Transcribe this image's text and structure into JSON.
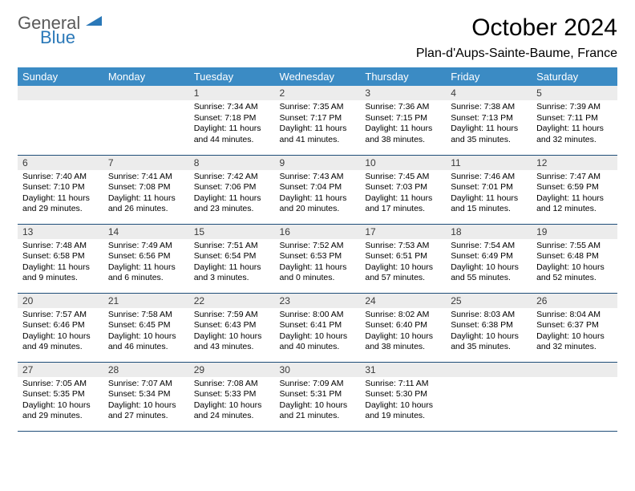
{
  "logo": {
    "part1": "General",
    "part2": "Blue"
  },
  "title": "October 2024",
  "location": "Plan-d'Aups-Sainte-Baume, France",
  "colors": {
    "header_bg": "#3b8bc4",
    "header_text": "#ffffff",
    "daynum_bg": "#ececec",
    "border": "#1f4e79",
    "logo_gray": "#5a5a5a",
    "logo_blue": "#2a78b8"
  },
  "layout": {
    "columns": 7,
    "rows": 5,
    "first_weekday_index": 2
  },
  "weekdays": [
    "Sunday",
    "Monday",
    "Tuesday",
    "Wednesday",
    "Thursday",
    "Friday",
    "Saturday"
  ],
  "days": [
    {
      "n": 1,
      "sunrise": "7:34 AM",
      "sunset": "7:18 PM",
      "daylight": "11 hours and 44 minutes."
    },
    {
      "n": 2,
      "sunrise": "7:35 AM",
      "sunset": "7:17 PM",
      "daylight": "11 hours and 41 minutes."
    },
    {
      "n": 3,
      "sunrise": "7:36 AM",
      "sunset": "7:15 PM",
      "daylight": "11 hours and 38 minutes."
    },
    {
      "n": 4,
      "sunrise": "7:38 AM",
      "sunset": "7:13 PM",
      "daylight": "11 hours and 35 minutes."
    },
    {
      "n": 5,
      "sunrise": "7:39 AM",
      "sunset": "7:11 PM",
      "daylight": "11 hours and 32 minutes."
    },
    {
      "n": 6,
      "sunrise": "7:40 AM",
      "sunset": "7:10 PM",
      "daylight": "11 hours and 29 minutes."
    },
    {
      "n": 7,
      "sunrise": "7:41 AM",
      "sunset": "7:08 PM",
      "daylight": "11 hours and 26 minutes."
    },
    {
      "n": 8,
      "sunrise": "7:42 AM",
      "sunset": "7:06 PM",
      "daylight": "11 hours and 23 minutes."
    },
    {
      "n": 9,
      "sunrise": "7:43 AM",
      "sunset": "7:04 PM",
      "daylight": "11 hours and 20 minutes."
    },
    {
      "n": 10,
      "sunrise": "7:45 AM",
      "sunset": "7:03 PM",
      "daylight": "11 hours and 17 minutes."
    },
    {
      "n": 11,
      "sunrise": "7:46 AM",
      "sunset": "7:01 PM",
      "daylight": "11 hours and 15 minutes."
    },
    {
      "n": 12,
      "sunrise": "7:47 AM",
      "sunset": "6:59 PM",
      "daylight": "11 hours and 12 minutes."
    },
    {
      "n": 13,
      "sunrise": "7:48 AM",
      "sunset": "6:58 PM",
      "daylight": "11 hours and 9 minutes."
    },
    {
      "n": 14,
      "sunrise": "7:49 AM",
      "sunset": "6:56 PM",
      "daylight": "11 hours and 6 minutes."
    },
    {
      "n": 15,
      "sunrise": "7:51 AM",
      "sunset": "6:54 PM",
      "daylight": "11 hours and 3 minutes."
    },
    {
      "n": 16,
      "sunrise": "7:52 AM",
      "sunset": "6:53 PM",
      "daylight": "11 hours and 0 minutes."
    },
    {
      "n": 17,
      "sunrise": "7:53 AM",
      "sunset": "6:51 PM",
      "daylight": "10 hours and 57 minutes."
    },
    {
      "n": 18,
      "sunrise": "7:54 AM",
      "sunset": "6:49 PM",
      "daylight": "10 hours and 55 minutes."
    },
    {
      "n": 19,
      "sunrise": "7:55 AM",
      "sunset": "6:48 PM",
      "daylight": "10 hours and 52 minutes."
    },
    {
      "n": 20,
      "sunrise": "7:57 AM",
      "sunset": "6:46 PM",
      "daylight": "10 hours and 49 minutes."
    },
    {
      "n": 21,
      "sunrise": "7:58 AM",
      "sunset": "6:45 PM",
      "daylight": "10 hours and 46 minutes."
    },
    {
      "n": 22,
      "sunrise": "7:59 AM",
      "sunset": "6:43 PM",
      "daylight": "10 hours and 43 minutes."
    },
    {
      "n": 23,
      "sunrise": "8:00 AM",
      "sunset": "6:41 PM",
      "daylight": "10 hours and 40 minutes."
    },
    {
      "n": 24,
      "sunrise": "8:02 AM",
      "sunset": "6:40 PM",
      "daylight": "10 hours and 38 minutes."
    },
    {
      "n": 25,
      "sunrise": "8:03 AM",
      "sunset": "6:38 PM",
      "daylight": "10 hours and 35 minutes."
    },
    {
      "n": 26,
      "sunrise": "8:04 AM",
      "sunset": "6:37 PM",
      "daylight": "10 hours and 32 minutes."
    },
    {
      "n": 27,
      "sunrise": "7:05 AM",
      "sunset": "5:35 PM",
      "daylight": "10 hours and 29 minutes."
    },
    {
      "n": 28,
      "sunrise": "7:07 AM",
      "sunset": "5:34 PM",
      "daylight": "10 hours and 27 minutes."
    },
    {
      "n": 29,
      "sunrise": "7:08 AM",
      "sunset": "5:33 PM",
      "daylight": "10 hours and 24 minutes."
    },
    {
      "n": 30,
      "sunrise": "7:09 AM",
      "sunset": "5:31 PM",
      "daylight": "10 hours and 21 minutes."
    },
    {
      "n": 31,
      "sunrise": "7:11 AM",
      "sunset": "5:30 PM",
      "daylight": "10 hours and 19 minutes."
    }
  ],
  "labels": {
    "sunrise": "Sunrise:",
    "sunset": "Sunset:",
    "daylight": "Daylight:"
  }
}
